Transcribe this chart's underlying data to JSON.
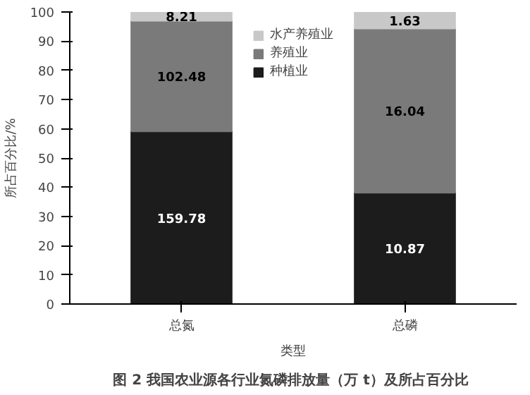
{
  "chart_data": {
    "type": "bar",
    "stacked": true,
    "title": "图 2  我国农业源各行业氮磷排放量（万 t）及所占百分比",
    "xlabel": "类型",
    "ylabel": "所占百分比/%",
    "categories": [
      "总氮",
      "总磷"
    ],
    "series": [
      {
        "name": "种植业",
        "color": "#1c1c1c",
        "values": [
          59.1,
          38.1
        ]
      },
      {
        "name": "养殖业",
        "color": "#7a7a7a",
        "values": [
          37.9,
          56.2
        ]
      },
      {
        "name": "水产养殖业",
        "color": "#c8c8c8",
        "values": [
          3.0,
          5.7
        ]
      }
    ],
    "annotations": [
      "159.78",
      "10.87",
      "102.48",
      "16.04",
      "8.21",
      "1.63"
    ],
    "ylim": [
      0,
      100
    ],
    "yticks": [
      0,
      10,
      20,
      30,
      40,
      50,
      60,
      70,
      80,
      90,
      100
    ],
    "grid": false,
    "legend": "top"
  }
}
